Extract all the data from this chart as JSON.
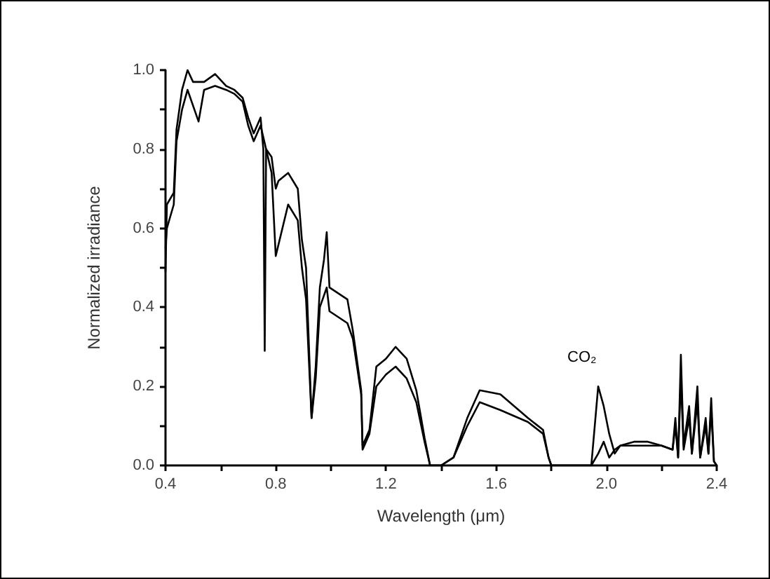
{
  "chart_data": {
    "type": "line",
    "xlabel": "Wavelength (μm)",
    "ylabel": "Normalized irradiance",
    "xlim": [
      0.4,
      2.4
    ],
    "xticks": [
      0.4,
      {
        "value": 0.6,
        "label": null
      },
      0.8,
      {
        "value": 1.0,
        "label": null
      },
      1.2,
      {
        "value": 1.4,
        "label": null
      },
      1.6,
      {
        "value": 1.8,
        "label": null
      },
      {
        "value": 2.0,
        "label": "2.0"
      },
      {
        "value": 2.2,
        "label": null
      },
      2.4
    ],
    "ylim": [
      0,
      1.0
    ],
    "yticks": [
      {
        "value": 0,
        "label": "0.0"
      },
      {
        "value": 0.1,
        "label": null
      },
      0.2,
      {
        "value": 0.3,
        "label": null
      },
      0.4,
      {
        "value": 0.5,
        "label": null
      },
      0.6,
      {
        "value": 0.7,
        "label": null
      },
      0.8,
      {
        "value": 0.9,
        "label": null
      },
      {
        "value": 1.0,
        "label": "1.0"
      }
    ],
    "grid": false,
    "marker": "none",
    "line_style": "solid",
    "annotations": [
      {
        "text": "CO₂",
        "x": 1.97,
        "y": 0.2
      }
    ],
    "series": [
      {
        "color": "#000000",
        "x": [
          0.4,
          0.405,
          0.43,
          0.44,
          0.46,
          0.48,
          0.5,
          0.54,
          0.58,
          0.62,
          0.65,
          0.68,
          0.7,
          0.72,
          0.745,
          0.755,
          0.76,
          0.765,
          0.785,
          0.8,
          0.81,
          0.845,
          0.88,
          0.895,
          0.91,
          0.93,
          0.945,
          0.96,
          0.975,
          0.985,
          0.995,
          1.06,
          1.08,
          1.11,
          1.115,
          1.14,
          1.165,
          1.2,
          1.235,
          1.275,
          1.31,
          1.34,
          1.36,
          1.4,
          1.445,
          1.495,
          1.54,
          1.615,
          1.715,
          1.77,
          1.79,
          1.8,
          1.945,
          1.97,
          1.99,
          2.01,
          2.03,
          2.05,
          2.1,
          2.15,
          2.2,
          2.24,
          2.25,
          2.26,
          2.27,
          2.28,
          2.3,
          2.31,
          2.33,
          2.34,
          2.36,
          2.37,
          2.38,
          2.39,
          2.4
        ],
        "values": [
          0.49,
          0.66,
          0.69,
          0.85,
          0.95,
          1.0,
          0.97,
          0.97,
          0.99,
          0.96,
          0.95,
          0.93,
          0.88,
          0.84,
          0.88,
          0.8,
          0.29,
          0.8,
          0.78,
          0.7,
          0.72,
          0.74,
          0.7,
          0.57,
          0.5,
          0.12,
          0.25,
          0.45,
          0.52,
          0.59,
          0.45,
          0.42,
          0.34,
          0.19,
          0.05,
          0.09,
          0.25,
          0.27,
          0.3,
          0.27,
          0.19,
          0.07,
          0.0,
          0.0,
          0.02,
          0.12,
          0.19,
          0.18,
          0.12,
          0.09,
          0.02,
          0.0,
          0.0,
          0.2,
          0.15,
          0.08,
          0.03,
          0.05,
          0.06,
          0.06,
          0.05,
          0.04,
          0.12,
          0.02,
          0.28,
          0.05,
          0.15,
          0.03,
          0.2,
          0.02,
          0.12,
          0.03,
          0.17,
          0.01,
          0.0
        ]
      },
      {
        "color": "#000000",
        "x": [
          0.4,
          0.405,
          0.43,
          0.44,
          0.46,
          0.48,
          0.52,
          0.54,
          0.58,
          0.62,
          0.65,
          0.68,
          0.7,
          0.72,
          0.745,
          0.785,
          0.8,
          0.845,
          0.88,
          0.895,
          0.91,
          0.93,
          0.945,
          0.96,
          0.985,
          0.995,
          1.06,
          1.08,
          1.11,
          1.115,
          1.14,
          1.165,
          1.2,
          1.235,
          1.275,
          1.31,
          1.34,
          1.36,
          1.4,
          1.445,
          1.495,
          1.54,
          1.615,
          1.715,
          1.77,
          1.79,
          1.8,
          1.945,
          1.97,
          1.99,
          2.01,
          2.03,
          2.05,
          2.1,
          2.15,
          2.2,
          2.24,
          2.25,
          2.26,
          2.27,
          2.28,
          2.3,
          2.31,
          2.33,
          2.34,
          2.36,
          2.37,
          2.38,
          2.39,
          2.4
        ],
        "values": [
          0.55,
          0.6,
          0.66,
          0.82,
          0.9,
          0.95,
          0.87,
          0.95,
          0.96,
          0.95,
          0.94,
          0.92,
          0.86,
          0.82,
          0.86,
          0.74,
          0.53,
          0.66,
          0.62,
          0.5,
          0.42,
          0.12,
          0.22,
          0.4,
          0.45,
          0.39,
          0.36,
          0.32,
          0.18,
          0.04,
          0.08,
          0.2,
          0.23,
          0.25,
          0.22,
          0.16,
          0.06,
          0.0,
          0.0,
          0.02,
          0.1,
          0.16,
          0.14,
          0.11,
          0.08,
          0.02,
          0.0,
          0.0,
          0.03,
          0.06,
          0.02,
          0.04,
          0.05,
          0.05,
          0.05,
          0.05,
          0.04,
          0.1,
          0.02,
          0.22,
          0.04,
          0.12,
          0.03,
          0.16,
          0.02,
          0.1,
          0.03,
          0.14,
          0.01,
          0.0
        ]
      }
    ]
  }
}
